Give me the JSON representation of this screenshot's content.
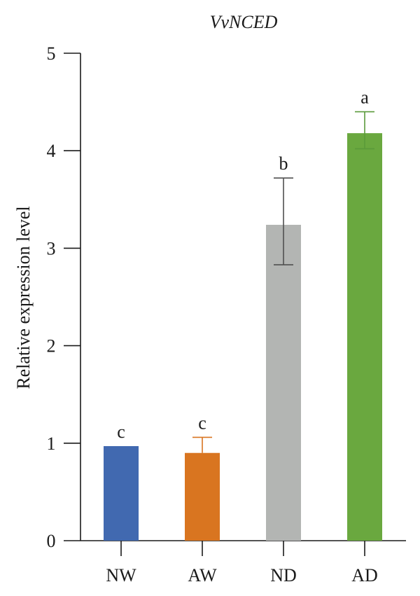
{
  "chart_data": {
    "type": "bar",
    "title": "VvNCED",
    "xlabel": "",
    "ylabel": "Relative expression level",
    "ylim": [
      0,
      5
    ],
    "yticks": [
      "0",
      "1",
      "2",
      "3",
      "4",
      "5"
    ],
    "categories": [
      "NW",
      "AW",
      "ND",
      "AD"
    ],
    "values": [
      0.97,
      0.9,
      3.24,
      4.18
    ],
    "error_high": [
      0.97,
      1.06,
      3.72,
      4.4
    ],
    "error_low": [
      0.97,
      0.9,
      2.83,
      4.02
    ],
    "significance": [
      "c",
      "c",
      "b",
      "a"
    ],
    "colors": [
      "#4169b0",
      "#d97520",
      "#b3b5b3",
      "#6aa83f"
    ],
    "error_colors": [
      "#4169b0",
      "#d97520",
      "#505050",
      "#5a9a3a"
    ],
    "grid": false,
    "legend": "none"
  }
}
